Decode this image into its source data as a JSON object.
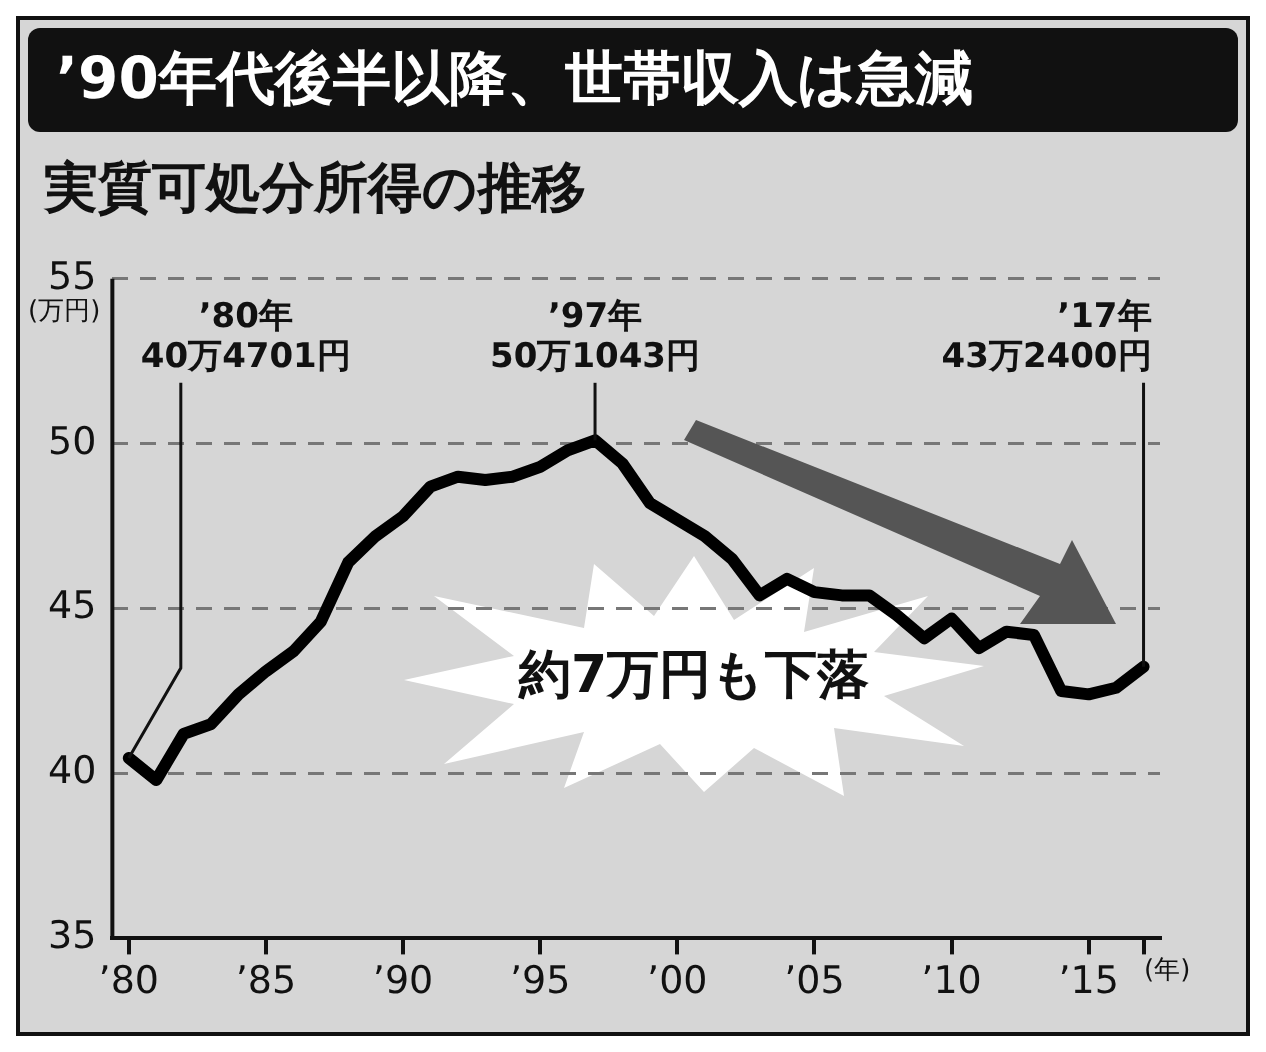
{
  "chart_data": {
    "type": "line",
    "title": "’90年代後半以降、世帯収入は急減",
    "subtitle": "実質可処分所得の推移",
    "xlabel": "(年)",
    "ylabel": "(万円)",
    "x": [
      1980,
      1981,
      1982,
      1983,
      1984,
      1985,
      1986,
      1987,
      1988,
      1989,
      1990,
      1991,
      1992,
      1993,
      1994,
      1995,
      1996,
      1997,
      1998,
      1999,
      2000,
      2001,
      2002,
      2003,
      2004,
      2005,
      2006,
      2007,
      2008,
      2009,
      2010,
      2011,
      2012,
      2013,
      2014,
      2015,
      2016,
      2017
    ],
    "series": [
      {
        "color": "#000000",
        "values": [
          40.4701,
          39.8,
          41.2,
          41.5,
          42.4,
          43.1,
          43.7,
          44.6,
          46.4,
          47.2,
          47.8,
          48.7,
          49.0,
          48.9,
          49.0,
          49.3,
          49.8,
          50.1043,
          49.4,
          48.2,
          47.7,
          47.2,
          46.5,
          45.4,
          45.9,
          45.5,
          45.4,
          45.4,
          44.8,
          44.1,
          44.7,
          43.8,
          44.3,
          44.2,
          42.5,
          42.4,
          42.6,
          43.24
        ]
      }
    ],
    "xlim": [
      1979.4,
      2017.6
    ],
    "xticks": [
      {
        "value": 1980,
        "label": "’80"
      },
      {
        "value": 1985,
        "label": "’85"
      },
      {
        "value": 1990,
        "label": "’90"
      },
      {
        "value": 1995,
        "label": "’95"
      },
      {
        "value": 2000,
        "label": "’00"
      },
      {
        "value": 2005,
        "label": "’05"
      },
      {
        "value": 2010,
        "label": "’10"
      },
      {
        "value": 2015,
        "label": "’15"
      },
      {
        "value": 2017,
        "label": null
      }
    ],
    "ylim": [
      35,
      55
    ],
    "yticks": [
      35,
      40,
      45,
      50,
      55
    ],
    "grid": "y",
    "legend": false,
    "marker": "none",
    "line_style": "solid",
    "annotations": [
      {
        "text": "’80年\n40万4701円",
        "x": 1980,
        "y": 40.4701
      },
      {
        "text": "’97年\n50万1043円",
        "x": 1997,
        "y": 50.1043
      },
      {
        "text": "’17年\n43万2400円",
        "x": 2017,
        "y": 43.24
      },
      "約7万円も下落"
    ]
  }
}
